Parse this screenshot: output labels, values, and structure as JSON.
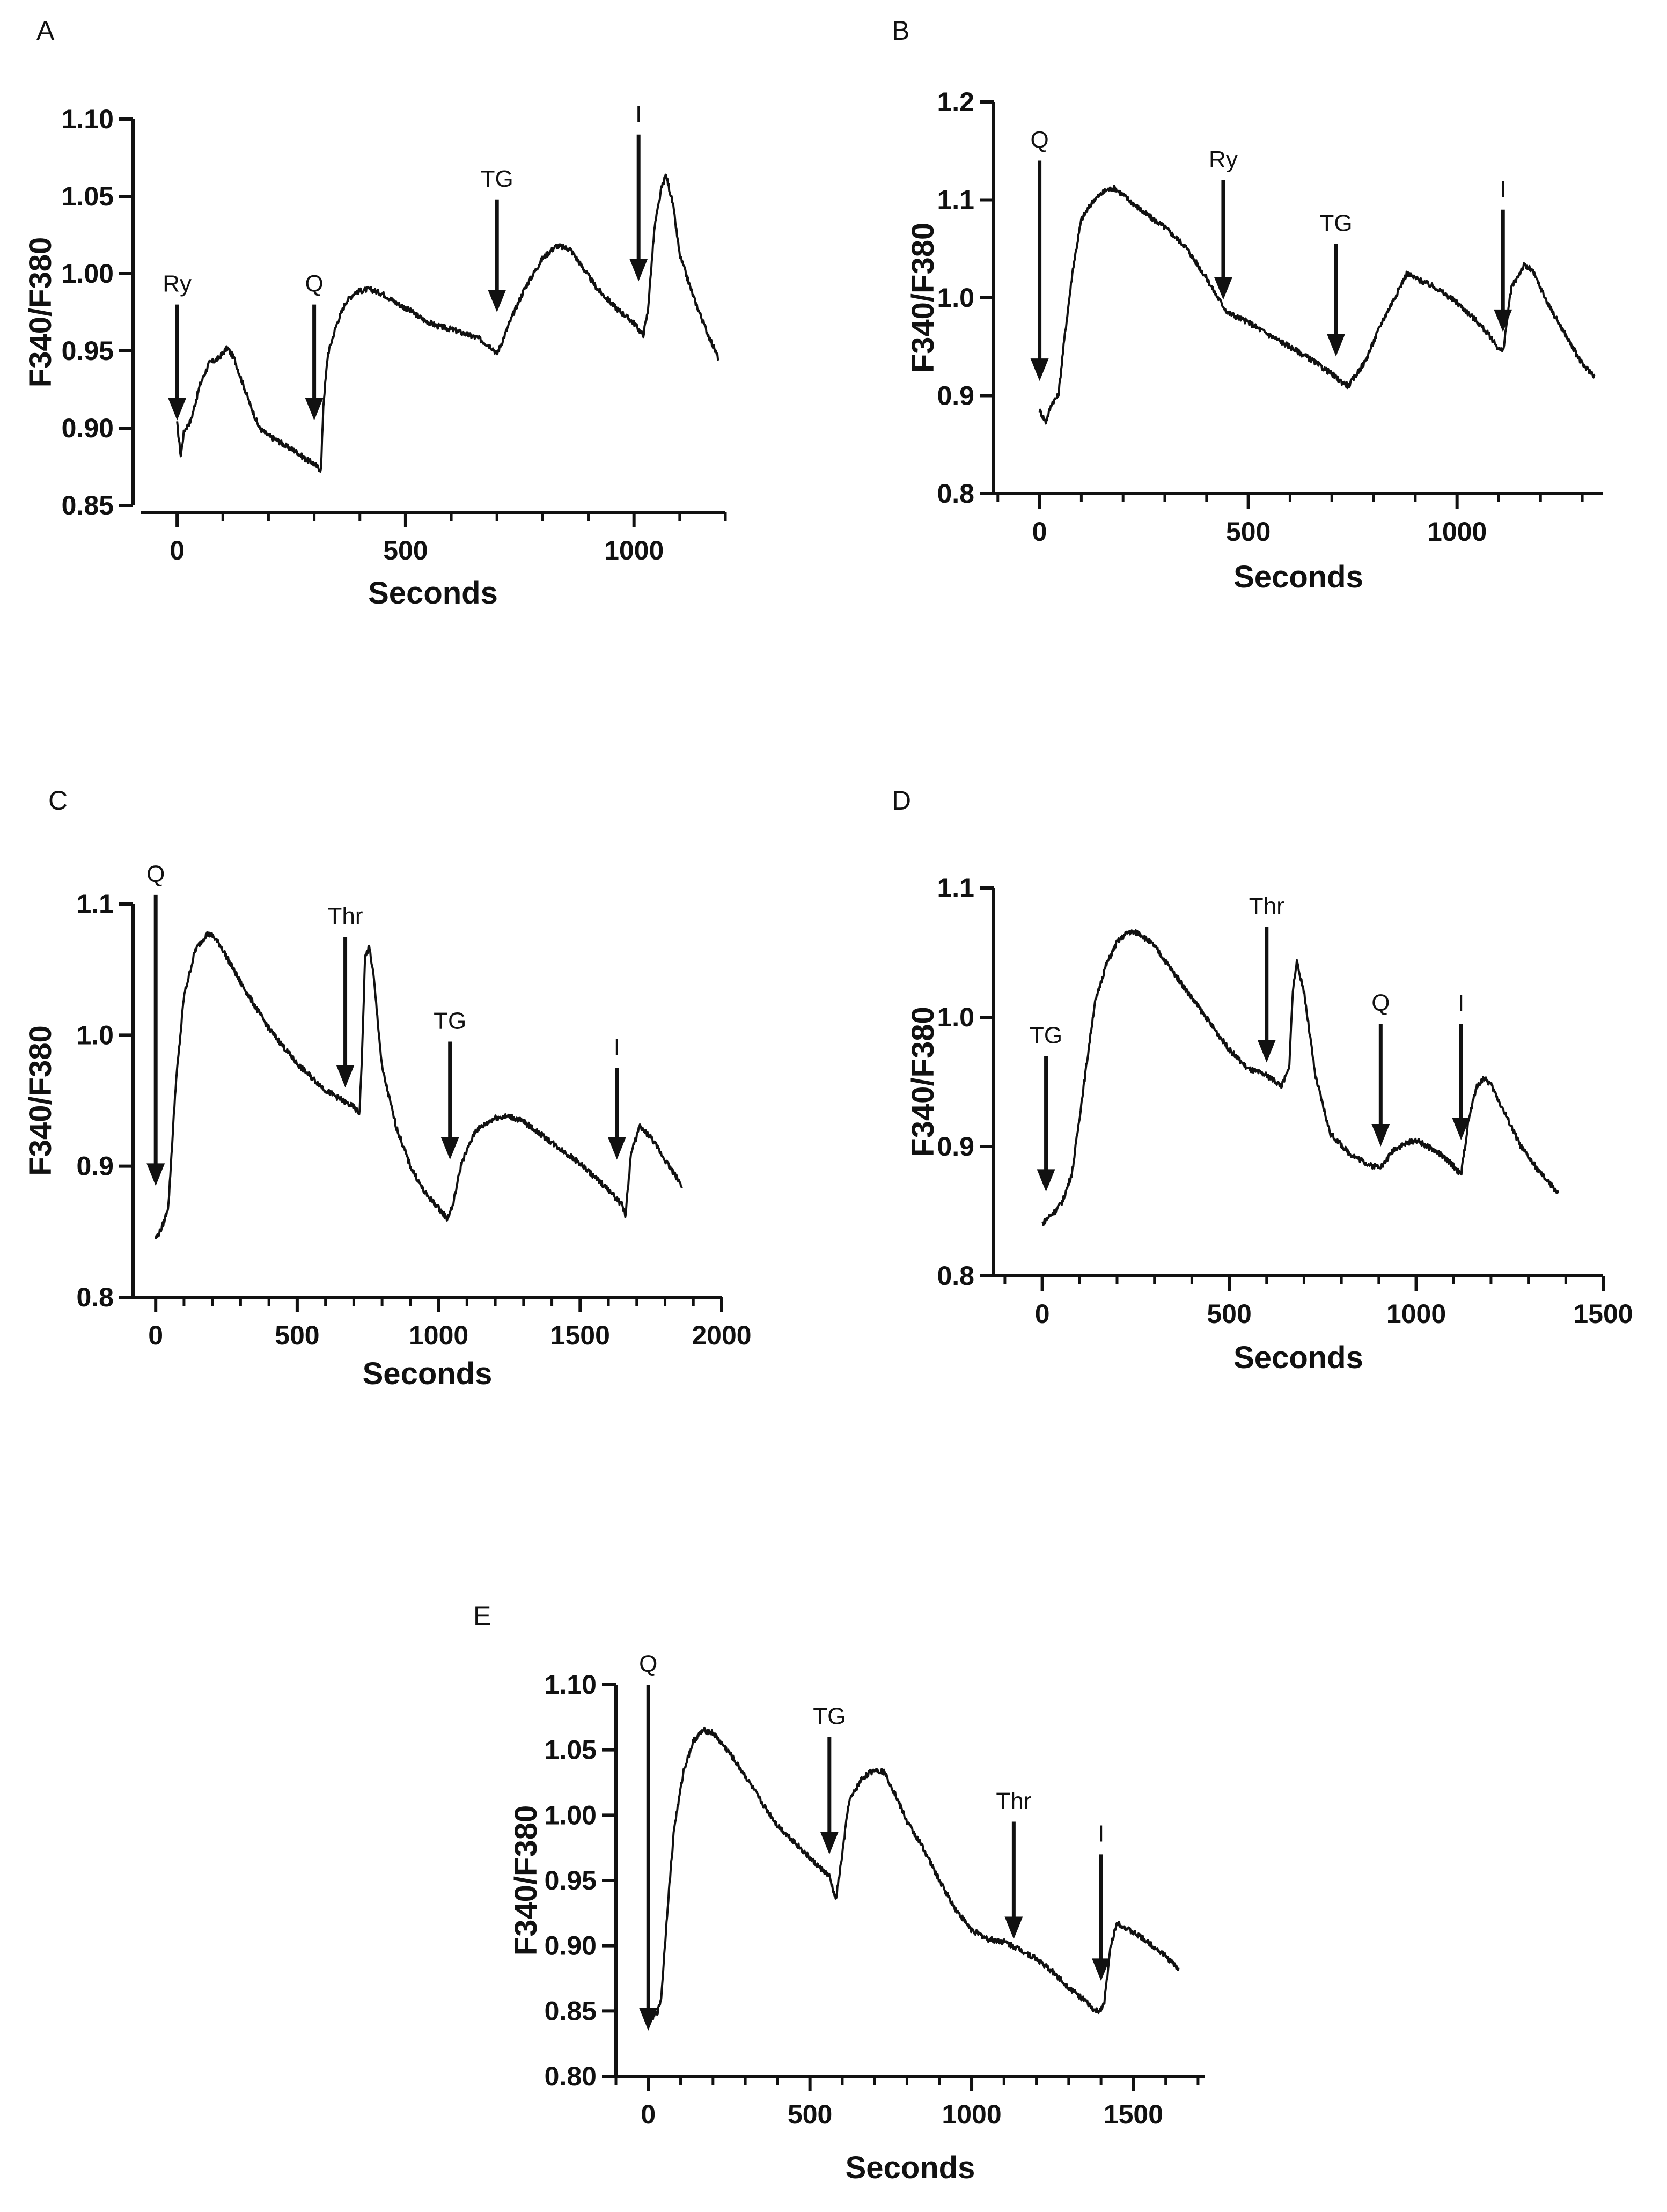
{
  "chart_data": [
    {
      "panel": "A",
      "type": "line",
      "xlabel": "Seconds",
      "ylabel": "F340/F380",
      "xlim": [
        -80,
        1200
      ],
      "ylim": [
        0.85,
        1.1
      ],
      "x_ticks": [
        0,
        500,
        1000
      ],
      "y_ticks": [
        0.85,
        0.9,
        0.95,
        1.0,
        1.05,
        1.1
      ],
      "y_tick_labels": [
        "0.85",
        "0.90",
        "0.95",
        "1.00",
        "1.05",
        "1.10"
      ],
      "x_minor_step": 100,
      "series": [
        {
          "x": [
            0,
            8,
            15,
            30,
            50,
            70,
            90,
            110,
            125,
            140,
            160,
            180,
            200,
            220,
            240,
            260,
            280,
            300,
            310,
            315,
            320,
            330,
            350,
            370,
            390,
            420,
            450,
            480,
            510,
            540,
            570,
            600,
            630,
            660,
            690,
            700,
            710,
            730,
            760,
            800,
            830,
            860,
            890,
            920,
            960,
            1000,
            1020,
            1030,
            1045,
            1060,
            1070,
            1085,
            1100,
            1130,
            1160,
            1185
          ],
          "y": [
            0.903,
            0.882,
            0.898,
            0.905,
            0.928,
            0.942,
            0.945,
            0.952,
            0.945,
            0.932,
            0.915,
            0.9,
            0.895,
            0.892,
            0.888,
            0.885,
            0.88,
            0.877,
            0.874,
            0.873,
            0.915,
            0.948,
            0.968,
            0.982,
            0.988,
            0.99,
            0.987,
            0.981,
            0.976,
            0.97,
            0.966,
            0.964,
            0.961,
            0.958,
            0.952,
            0.948,
            0.955,
            0.97,
            0.99,
            1.01,
            1.018,
            1.016,
            1.003,
            0.99,
            0.978,
            0.968,
            0.96,
            0.975,
            1.03,
            1.055,
            1.064,
            1.045,
            1.012,
            0.985,
            0.962,
            0.945
          ],
          "stroke": "#111111"
        }
      ],
      "annotations": [
        {
          "label": "Ry",
          "x": 0,
          "top": 0.98,
          "tip": 0.905
        },
        {
          "label": "Q",
          "x": 300,
          "top": 0.98,
          "tip": 0.905
        },
        {
          "label": "TG",
          "x": 700,
          "top": 1.048,
          "tip": 0.975
        },
        {
          "label": "I",
          "x": 1010,
          "top": 1.09,
          "tip": 0.995
        }
      ]
    },
    {
      "panel": "B",
      "type": "line",
      "xlabel": "Seconds",
      "ylabel": "F340/F380",
      "xlim": [
        -110,
        1350
      ],
      "ylim": [
        0.8,
        1.2
      ],
      "x_ticks": [
        0,
        500,
        1000
      ],
      "y_ticks": [
        0.8,
        0.9,
        1.0,
        1.1,
        1.2
      ],
      "y_tick_labels": [
        "0.8",
        "0.9",
        "1.0",
        "1.1",
        "1.2"
      ],
      "x_minor_step": 100,
      "series": [
        {
          "x": [
            0,
            15,
            30,
            45,
            60,
            80,
            100,
            130,
            160,
            180,
            200,
            250,
            300,
            350,
            400,
            420,
            450,
            500,
            550,
            600,
            650,
            700,
            720,
            740,
            780,
            820,
            860,
            880,
            900,
            950,
            1000,
            1050,
            1080,
            1100,
            1110,
            1130,
            1160,
            1180,
            1220,
            1260,
            1300,
            1330
          ],
          "y": [
            0.885,
            0.873,
            0.893,
            0.9,
            0.96,
            1.03,
            1.08,
            1.1,
            1.11,
            1.112,
            1.105,
            1.087,
            1.072,
            1.052,
            1.02,
            1.005,
            0.985,
            0.975,
            0.962,
            0.95,
            0.937,
            0.922,
            0.915,
            0.91,
            0.935,
            0.975,
            1.008,
            1.025,
            1.02,
            1.01,
            0.995,
            0.975,
            0.96,
            0.948,
            0.945,
            1.01,
            1.033,
            1.028,
            0.992,
            0.962,
            0.932,
            0.92
          ],
          "stroke": "#111111"
        }
      ],
      "annotations": [
        {
          "label": "Q",
          "x": 0,
          "top": 1.14,
          "tip": 0.915
        },
        {
          "label": "Ry",
          "x": 440,
          "top": 1.12,
          "tip": 0.998
        },
        {
          "label": "TG",
          "x": 710,
          "top": 1.055,
          "tip": 0.94
        },
        {
          "label": "I",
          "x": 1110,
          "top": 1.09,
          "tip": 0.965
        }
      ]
    },
    {
      "panel": "C",
      "type": "line",
      "xlabel": "Seconds",
      "ylabel": "F340/F380",
      "xlim": [
        -80,
        2000
      ],
      "ylim": [
        0.8,
        1.1
      ],
      "x_ticks": [
        0,
        500,
        1000,
        1500,
        2000
      ],
      "y_ticks": [
        0.8,
        0.9,
        1.0,
        1.1
      ],
      "y_tick_labels": [
        "0.8",
        "0.9",
        "1.0",
        "1.1"
      ],
      "x_minor_step": 100,
      "series": [
        {
          "x": [
            0,
            15,
            30,
            45,
            70,
            100,
            140,
            180,
            200,
            230,
            300,
            400,
            500,
            600,
            700,
            720,
            730,
            740,
            755,
            770,
            800,
            850,
            900,
            950,
            1000,
            1030,
            1050,
            1080,
            1130,
            1200,
            1250,
            1300,
            1400,
            1500,
            1600,
            1650,
            1660,
            1680,
            1710,
            1750,
            1800,
            1860
          ],
          "y": [
            0.845,
            0.85,
            0.858,
            0.87,
            0.96,
            1.03,
            1.065,
            1.077,
            1.076,
            1.068,
            1.04,
            1.005,
            0.978,
            0.958,
            0.945,
            0.94,
            0.99,
            1.06,
            1.067,
            1.045,
            0.975,
            0.93,
            0.9,
            0.88,
            0.868,
            0.86,
            0.87,
            0.902,
            0.927,
            0.937,
            0.938,
            0.934,
            0.918,
            0.902,
            0.882,
            0.87,
            0.862,
            0.91,
            0.93,
            0.922,
            0.905,
            0.885
          ],
          "stroke": "#111111"
        }
      ],
      "annotations": [
        {
          "label": "Q",
          "x": 0,
          "top": 1.107,
          "tip": 0.885
        },
        {
          "label": "Thr",
          "x": 670,
          "top": 1.075,
          "tip": 0.96
        },
        {
          "label": "TG",
          "x": 1040,
          "top": 0.995,
          "tip": 0.905
        },
        {
          "label": "I",
          "x": 1630,
          "top": 0.975,
          "tip": 0.905
        }
      ]
    },
    {
      "panel": "D",
      "type": "line",
      "xlabel": "Seconds",
      "ylabel": "F340/F380",
      "xlim": [
        -130,
        1500
      ],
      "ylim": [
        0.8,
        1.1
      ],
      "x_ticks": [
        0,
        500,
        1000,
        1500
      ],
      "y_ticks": [
        0.8,
        0.9,
        1.0,
        1.1
      ],
      "y_tick_labels": [
        "0.8",
        "0.9",
        "1.0",
        "1.1"
      ],
      "x_minor_step": 100,
      "series": [
        {
          "x": [
            0,
            15,
            35,
            55,
            80,
            110,
            140,
            170,
            200,
            230,
            260,
            300,
            350,
            400,
            450,
            500,
            550,
            600,
            640,
            660,
            670,
            680,
            700,
            730,
            770,
            820,
            880,
            910,
            940,
            970,
            1000,
            1030,
            1060,
            1100,
            1120,
            1140,
            1160,
            1180,
            1200,
            1230,
            1280,
            1330,
            1380
          ],
          "y": [
            0.84,
            0.845,
            0.85,
            0.858,
            0.88,
            0.945,
            1.01,
            1.04,
            1.058,
            1.066,
            1.065,
            1.055,
            1.035,
            1.015,
            0.995,
            0.975,
            0.96,
            0.955,
            0.947,
            0.96,
            1.02,
            1.043,
            1.02,
            0.955,
            0.91,
            0.895,
            0.885,
            0.885,
            0.898,
            0.902,
            0.905,
            0.9,
            0.895,
            0.885,
            0.878,
            0.92,
            0.945,
            0.953,
            0.948,
            0.93,
            0.9,
            0.88,
            0.864
          ],
          "stroke": "#111111"
        }
      ],
      "annotations": [
        {
          "label": "TG",
          "x": 10,
          "top": 0.97,
          "tip": 0.865
        },
        {
          "label": "Thr",
          "x": 600,
          "top": 1.07,
          "tip": 0.965
        },
        {
          "label": "Q",
          "x": 905,
          "top": 0.995,
          "tip": 0.9
        },
        {
          "label": "I",
          "x": 1120,
          "top": 0.995,
          "tip": 0.905
        }
      ]
    },
    {
      "panel": "E",
      "type": "line",
      "xlabel": "Seconds",
      "ylabel": "F340/F380",
      "xlim": [
        -100,
        1720
      ],
      "ylim": [
        0.8,
        1.1
      ],
      "x_ticks": [
        0,
        500,
        1000,
        1500
      ],
      "y_ticks": [
        0.8,
        0.85,
        0.9,
        0.95,
        1.0,
        1.05,
        1.1
      ],
      "y_tick_labels": [
        "0.80",
        "0.85",
        "0.90",
        "0.95",
        "1.00",
        "1.05",
        "1.10"
      ],
      "x_minor_step": 100,
      "series": [
        {
          "x": [
            0,
            15,
            30,
            40,
            60,
            80,
            110,
            140,
            170,
            200,
            250,
            300,
            350,
            400,
            450,
            500,
            530,
            560,
            580,
            600,
            620,
            660,
            700,
            730,
            760,
            800,
            850,
            900,
            950,
            1000,
            1050,
            1100,
            1150,
            1200,
            1250,
            1300,
            1350,
            1380,
            1395,
            1410,
            1430,
            1450,
            1480,
            1520,
            1560,
            1600,
            1640
          ],
          "y": [
            0.842,
            0.845,
            0.85,
            0.86,
            0.93,
            0.99,
            1.035,
            1.057,
            1.065,
            1.063,
            1.048,
            1.03,
            1.01,
            0.992,
            0.98,
            0.967,
            0.96,
            0.953,
            0.935,
            0.97,
            1.01,
            1.028,
            1.035,
            1.033,
            1.018,
            0.995,
            0.975,
            0.95,
            0.928,
            0.912,
            0.905,
            0.903,
            0.897,
            0.89,
            0.88,
            0.868,
            0.858,
            0.85,
            0.85,
            0.856,
            0.9,
            0.918,
            0.913,
            0.907,
            0.9,
            0.892,
            0.882
          ],
          "stroke": "#111111"
        }
      ],
      "annotations": [
        {
          "label": "Q",
          "x": 0,
          "top": 1.1,
          "tip": 0.835
        },
        {
          "label": "TG",
          "x": 560,
          "top": 1.06,
          "tip": 0.97
        },
        {
          "label": "Thr",
          "x": 1130,
          "top": 0.995,
          "tip": 0.905
        },
        {
          "label": "I",
          "x": 1400,
          "top": 0.97,
          "tip": 0.873
        }
      ]
    }
  ]
}
